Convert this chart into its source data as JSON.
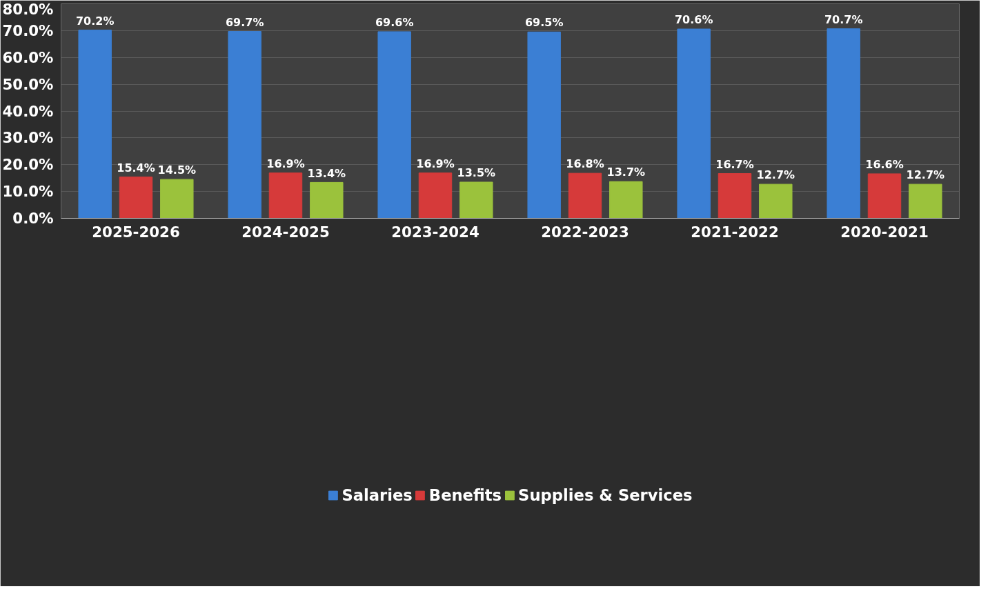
{
  "chart_data": {
    "type": "bar",
    "categories": [
      "2025-2026",
      "2024-2025",
      "2023-2024",
      "2022-2023",
      "2021-2022",
      "2020-2021"
    ],
    "series": [
      {
        "name": "Salaries",
        "color": "#3b7fd4",
        "values": [
          70.2,
          69.7,
          69.6,
          69.5,
          70.6,
          70.7
        ],
        "value_labels": [
          "70.2%",
          "69.7%",
          "69.6%",
          "69.5%",
          "70.6%",
          "70.7%"
        ]
      },
      {
        "name": "Benefits",
        "color": "#d63a3a",
        "values": [
          15.4,
          16.9,
          16.9,
          16.8,
          16.7,
          16.6
        ],
        "value_labels": [
          "15.4%",
          "16.9%",
          "16.9%",
          "16.8%",
          "16.7%",
          "16.6%"
        ]
      },
      {
        "name": "Supplies & Services",
        "color": "#9bc23c",
        "values": [
          14.5,
          13.4,
          13.5,
          13.7,
          12.7,
          12.7
        ],
        "value_labels": [
          "14.5%",
          "13.4%",
          "13.5%",
          "13.7%",
          "12.7%",
          "12.7%"
        ]
      }
    ],
    "ylim": [
      0,
      80
    ],
    "yticks": [
      {
        "value": 0,
        "label": "0.0%"
      },
      {
        "value": 10,
        "label": "10.0%"
      },
      {
        "value": 20,
        "label": "20.0%"
      },
      {
        "value": 30,
        "label": "30.0%"
      },
      {
        "value": 40,
        "label": "40.0%"
      },
      {
        "value": 50,
        "label": "50.0%"
      },
      {
        "value": 60,
        "label": "60.0%"
      },
      {
        "value": 70,
        "label": "70.0%"
      },
      {
        "value": 80,
        "label": "80.0%"
      }
    ],
    "grid": "y",
    "legend": "bottom"
  }
}
